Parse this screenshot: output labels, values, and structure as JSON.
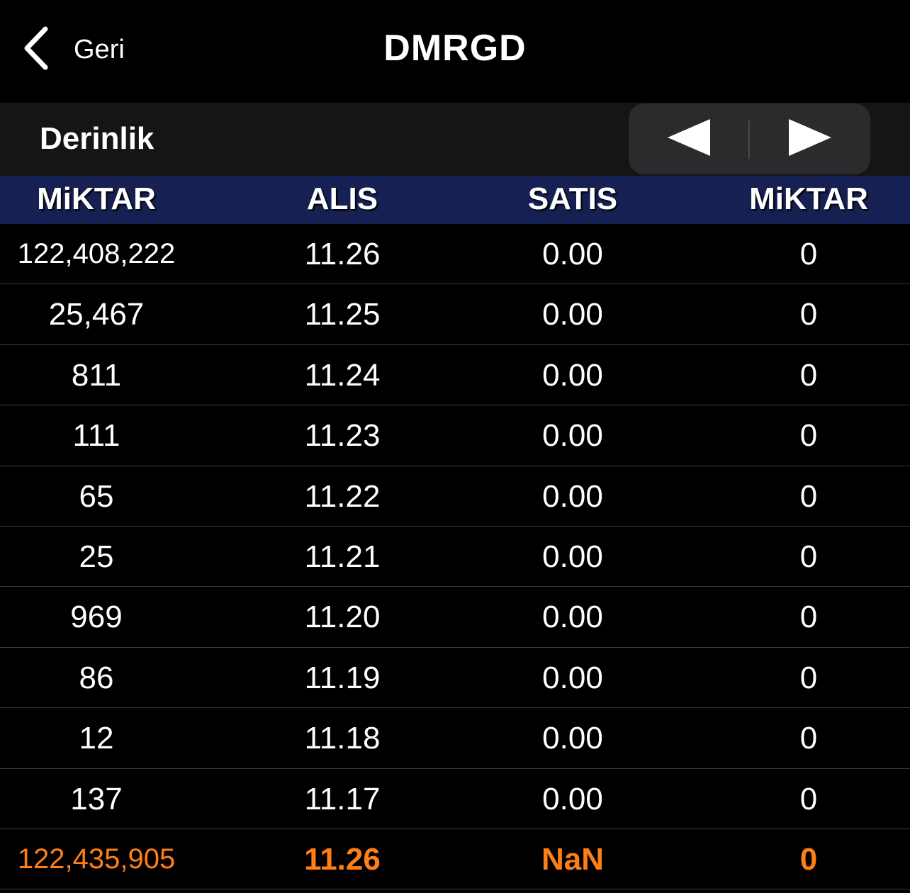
{
  "nav": {
    "back_label": "Geri",
    "title": "DMRGD"
  },
  "section": {
    "title": "Derinlik"
  },
  "table": {
    "headers": [
      "MiKTAR",
      "ALIS",
      "SATIS",
      "MiKTAR"
    ],
    "rows": [
      [
        "122,408,222",
        "11.26",
        "0.00",
        "0"
      ],
      [
        "25,467",
        "11.25",
        "0.00",
        "0"
      ],
      [
        "811",
        "11.24",
        "0.00",
        "0"
      ],
      [
        "111",
        "11.23",
        "0.00",
        "0"
      ],
      [
        "65",
        "11.22",
        "0.00",
        "0"
      ],
      [
        "25",
        "11.21",
        "0.00",
        "0"
      ],
      [
        "969",
        "11.20",
        "0.00",
        "0"
      ],
      [
        "86",
        "11.19",
        "0.00",
        "0"
      ],
      [
        "12",
        "11.18",
        "0.00",
        "0"
      ],
      [
        "137",
        "11.17",
        "0.00",
        "0"
      ]
    ],
    "total": [
      "122,435,905",
      "11.26",
      "NaN",
      "0"
    ]
  },
  "colors": {
    "header_bg": "#162053",
    "total_text": "#ff7f17",
    "segment_bg": "#2b2b2d"
  },
  "icons": {
    "back": "chevron-left-icon",
    "prev": "triangle-left-icon",
    "next": "triangle-right-icon"
  }
}
